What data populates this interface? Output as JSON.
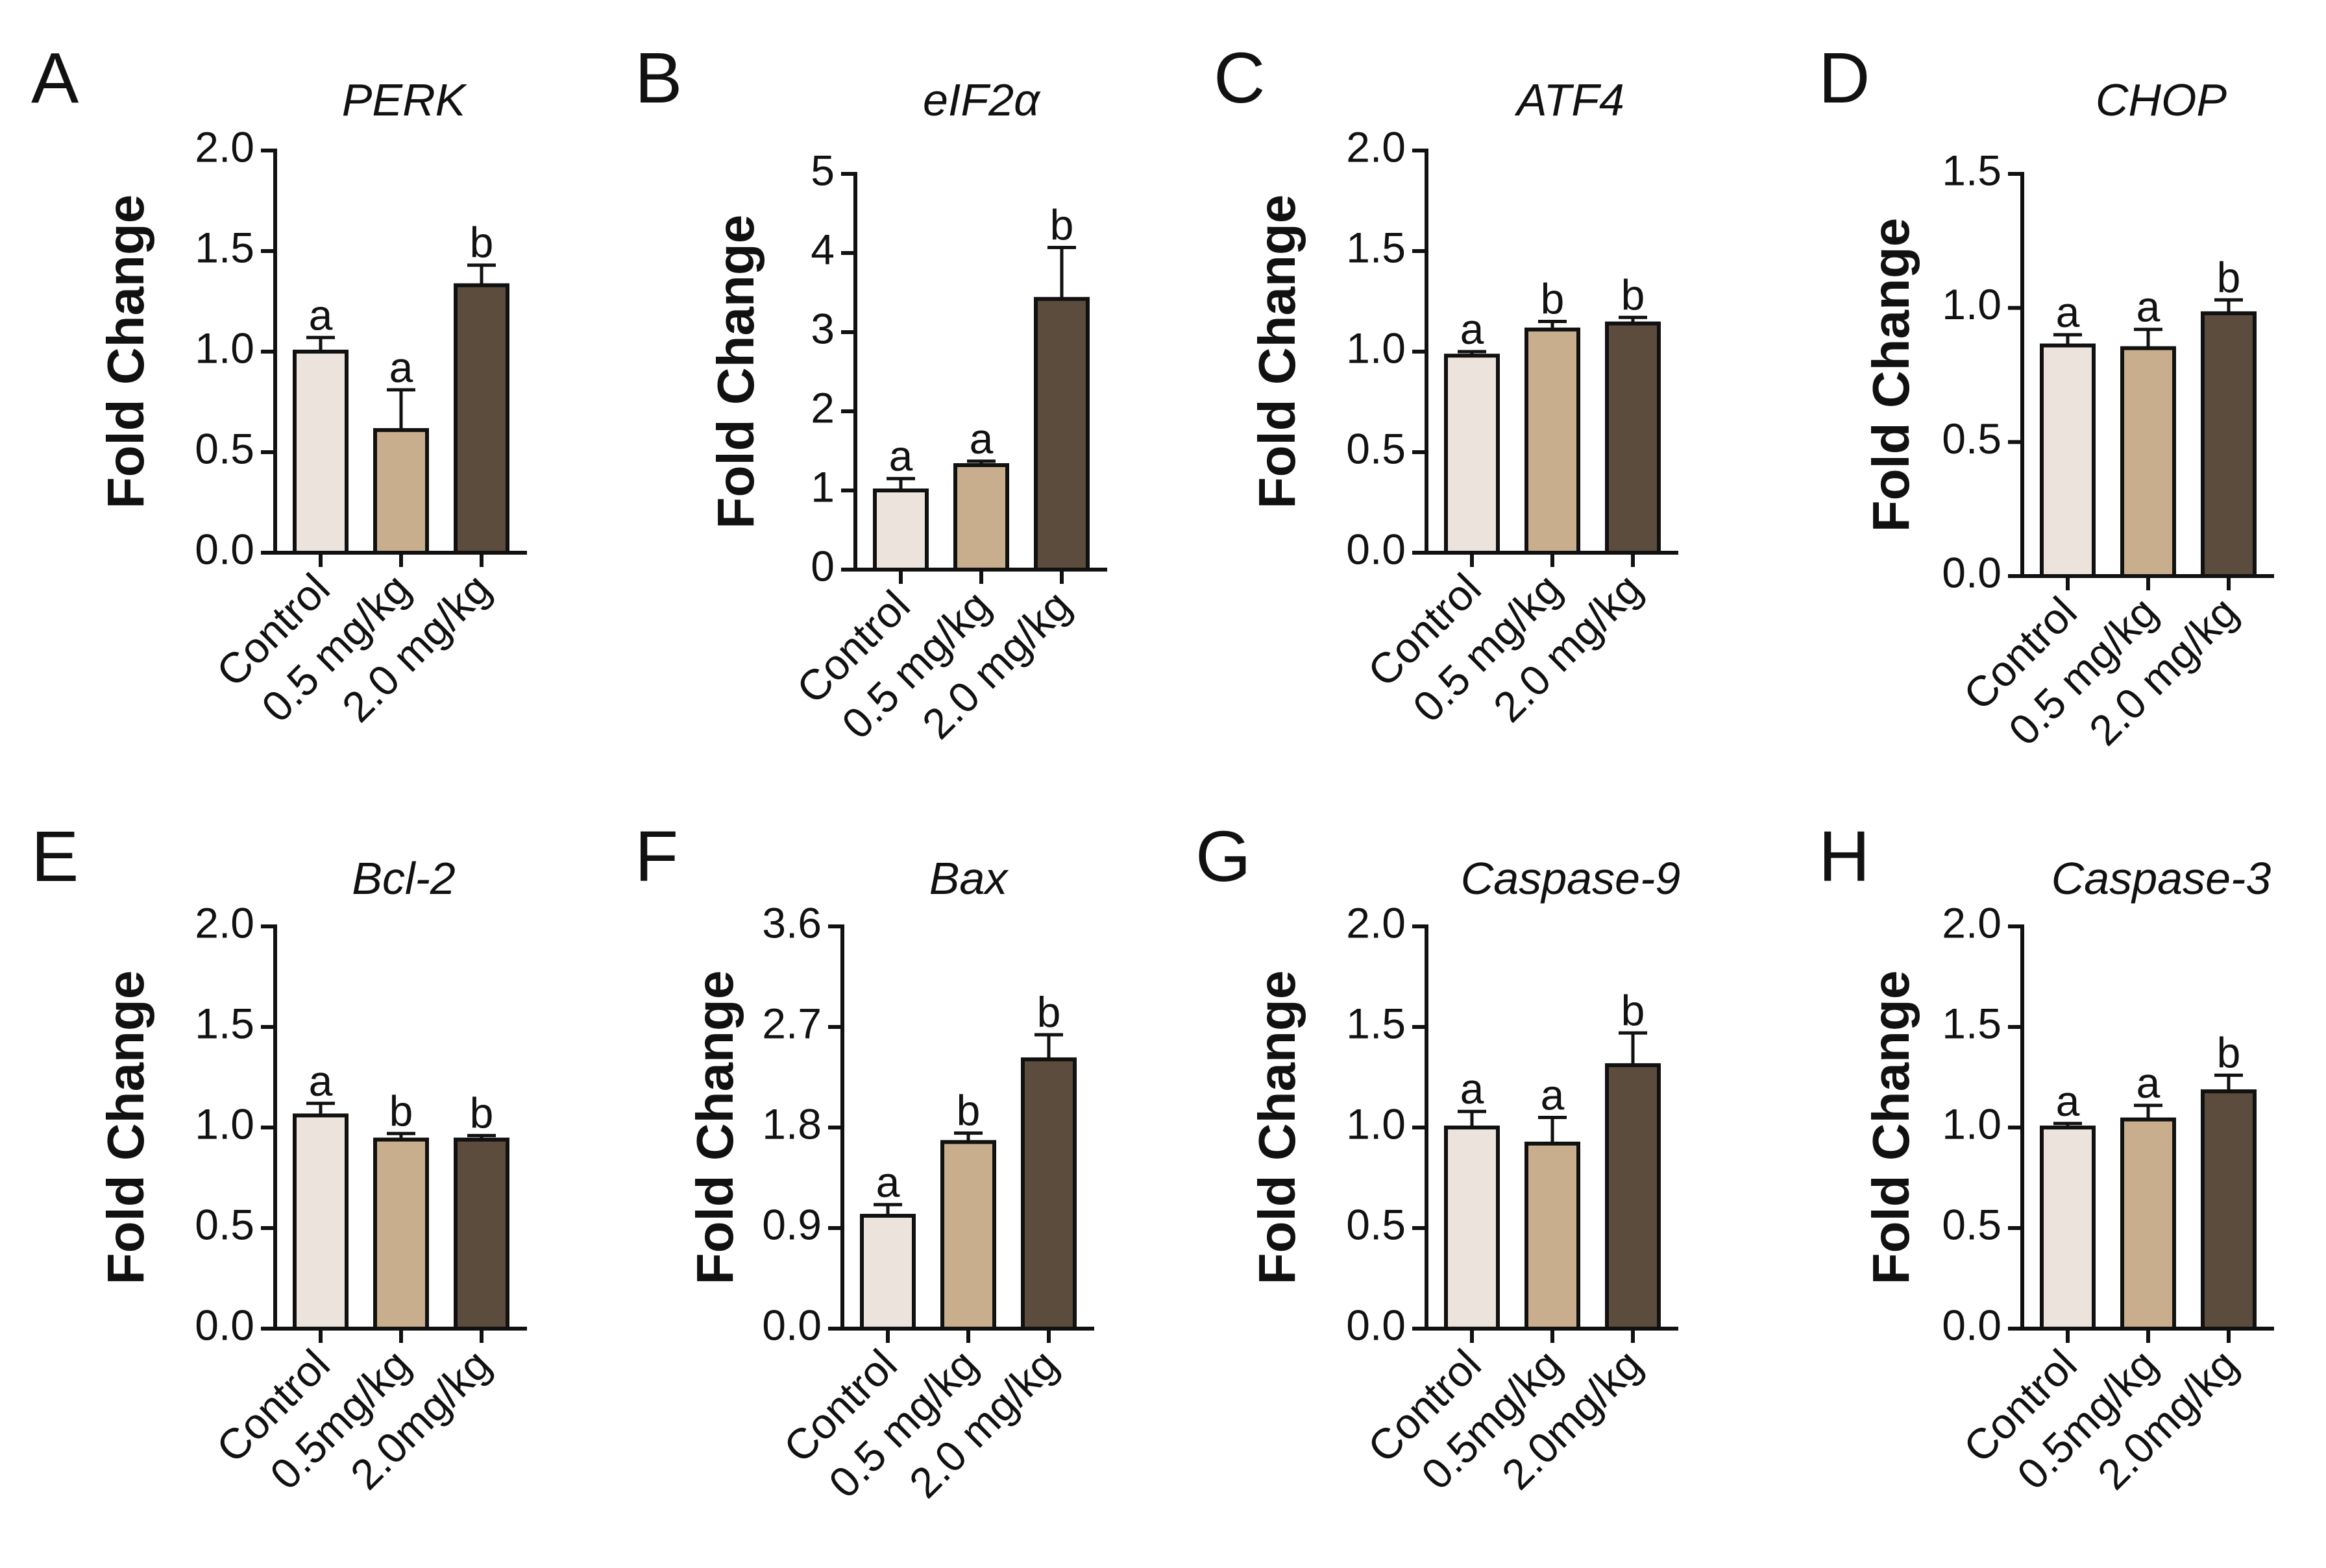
{
  "colors": {
    "control": "#ece4dc",
    "low_dose": "#c9ae8e",
    "high_dose": "#5b4c3d"
  },
  "chart_data": [
    {
      "type": "bar",
      "panel": "A",
      "title": "PERK",
      "ylabel": "Fold Change",
      "categories": [
        "Control",
        "0.5 mg/kg",
        "2.0 mg/kg"
      ],
      "values": [
        1.0,
        0.61,
        1.33
      ],
      "errors": [
        0.07,
        0.2,
        0.1
      ],
      "significance": [
        "a",
        "a",
        "b"
      ],
      "ylim": [
        0,
        2.0
      ],
      "yticks": [
        0,
        0.5,
        1.0,
        1.5,
        2.0
      ],
      "ytick_labels": [
        "0.0",
        "0.5",
        "1.0",
        "1.5",
        "2.0"
      ]
    },
    {
      "type": "bar",
      "panel": "B",
      "title": "eIF2α",
      "ylabel": "Fold Change",
      "categories": [
        "Control",
        "0.5 mg/kg",
        "2.0 mg/kg"
      ],
      "values": [
        1.0,
        1.32,
        3.42
      ],
      "errors": [
        0.15,
        0.05,
        0.65
      ],
      "significance": [
        "a",
        "a",
        "b"
      ],
      "ylim": [
        0,
        5
      ],
      "yticks": [
        0,
        1,
        2,
        3,
        4,
        5
      ],
      "ytick_labels": [
        "0",
        "1",
        "2",
        "3",
        "4",
        "5"
      ]
    },
    {
      "type": "bar",
      "panel": "C",
      "title": "ATF4",
      "ylabel": "Fold Change",
      "categories": [
        "Control",
        "0.5 mg/kg",
        "2.0 mg/kg"
      ],
      "values": [
        0.98,
        1.11,
        1.14
      ],
      "errors": [
        0.02,
        0.04,
        0.03
      ],
      "significance": [
        "a",
        "b",
        "b"
      ],
      "ylim": [
        0,
        2.0
      ],
      "yticks": [
        0,
        0.5,
        1.0,
        1.5,
        2.0
      ],
      "ytick_labels": [
        "0.0",
        "0.5",
        "1.0",
        "1.5",
        "2.0"
      ]
    },
    {
      "type": "bar",
      "panel": "D",
      "title": "CHOP",
      "ylabel": "Fold Change",
      "categories": [
        "Control",
        "0.5 mg/kg",
        "2.0 mg/kg"
      ],
      "values": [
        0.86,
        0.85,
        0.98
      ],
      "errors": [
        0.04,
        0.07,
        0.05
      ],
      "significance": [
        "a",
        "a",
        "b"
      ],
      "ylim": [
        0,
        1.5
      ],
      "yticks": [
        0,
        0.5,
        1.0,
        1.5
      ],
      "ytick_labels": [
        "0.0",
        "0.5",
        "1.0",
        "1.5"
      ]
    },
    {
      "type": "bar",
      "panel": "E",
      "title": "Bcl-2",
      "ylabel": "Fold Change",
      "categories": [
        "Control",
        "0.5mg/kg",
        "2.0mg/kg"
      ],
      "values": [
        1.06,
        0.94,
        0.94
      ],
      "errors": [
        0.06,
        0.03,
        0.02
      ],
      "significance": [
        "a",
        "b",
        "b"
      ],
      "ylim": [
        0,
        2.0
      ],
      "yticks": [
        0,
        0.5,
        1.0,
        1.5,
        2.0
      ],
      "ytick_labels": [
        "0.0",
        "0.5",
        "1.0",
        "1.5",
        "2.0"
      ]
    },
    {
      "type": "bar",
      "panel": "F",
      "title": "Bax",
      "ylabel": "Fold Change",
      "categories": [
        "Control",
        "0.5 mg/kg",
        "2.0 mg/kg"
      ],
      "values": [
        1.01,
        1.67,
        2.41
      ],
      "errors": [
        0.1,
        0.08,
        0.22
      ],
      "significance": [
        "a",
        "b",
        "b"
      ],
      "ylim": [
        0,
        3.6
      ],
      "yticks": [
        0,
        0.9,
        1.8,
        2.7,
        3.6
      ],
      "ytick_labels": [
        "0.0",
        "0.9",
        "1.8",
        "2.7",
        "3.6"
      ]
    },
    {
      "type": "bar",
      "panel": "G",
      "title": "Caspase-9",
      "ylabel": "Fold Change",
      "categories": [
        "Control",
        "0.5mg/kg",
        "2.0mg/kg"
      ],
      "values": [
        1.0,
        0.92,
        1.31
      ],
      "errors": [
        0.08,
        0.13,
        0.16
      ],
      "significance": [
        "a",
        "a",
        "b"
      ],
      "ylim": [
        0,
        2.0
      ],
      "yticks": [
        0,
        0.5,
        1.0,
        1.5,
        2.0
      ],
      "ytick_labels": [
        "0.0",
        "0.5",
        "1.0",
        "1.5",
        "2.0"
      ]
    },
    {
      "type": "bar",
      "panel": "H",
      "title": "Caspase-3",
      "ylabel": "Fold Change",
      "categories": [
        "Control",
        "0.5mg/kg",
        "2.0mg/kg"
      ],
      "values": [
        1.0,
        1.04,
        1.18
      ],
      "errors": [
        0.02,
        0.07,
        0.08
      ],
      "significance": [
        "a",
        "a",
        "b"
      ],
      "ylim": [
        0,
        2.0
      ],
      "yticks": [
        0,
        0.5,
        1.0,
        1.5,
        2.0
      ],
      "ytick_labels": [
        "0.0",
        "0.5",
        "1.0",
        "1.5",
        "2.0"
      ]
    }
  ]
}
